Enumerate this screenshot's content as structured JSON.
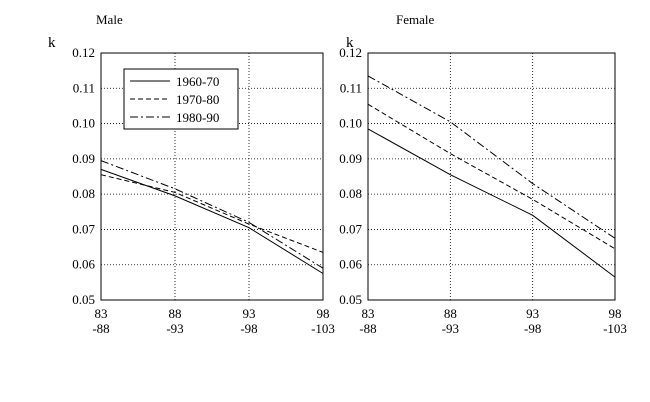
{
  "chart_data": [
    {
      "type": "line",
      "title": "Male",
      "ylabel": "k",
      "xlabel": "",
      "x": [
        "83 -88",
        "88 -93",
        "93 -98",
        "98 -103"
      ],
      "x_ticks": [
        {
          "line1": "83",
          "line2": "-88"
        },
        {
          "line1": "88",
          "line2": "-93"
        },
        {
          "line1": "93",
          "line2": "-98"
        },
        {
          "line1": "98",
          "line2": "-103"
        }
      ],
      "ylim": [
        0.05,
        0.12
      ],
      "yticks": [
        "0.05",
        "0.06",
        "0.07",
        "0.08",
        "0.09",
        "0.10",
        "0.11",
        "0.12"
      ],
      "grid": "dotted",
      "legend": "top-left",
      "series": [
        {
          "name": "1960-70",
          "style": "solid",
          "values": [
            0.087,
            0.0795,
            0.0705,
            0.0575
          ]
        },
        {
          "name": "1970-80",
          "style": "dashed",
          "values": [
            0.0855,
            0.0805,
            0.0715,
            0.0635
          ]
        },
        {
          "name": "1980-90",
          "style": "dashdot",
          "values": [
            0.0895,
            0.0815,
            0.072,
            0.059
          ]
        }
      ]
    },
    {
      "type": "line",
      "title": "Female",
      "ylabel": "k",
      "xlabel": "",
      "x": [
        "83 -88",
        "88 -93",
        "93 -98",
        "98 -103"
      ],
      "x_ticks": [
        {
          "line1": "83",
          "line2": "-88"
        },
        {
          "line1": "88",
          "line2": "-93"
        },
        {
          "line1": "93",
          "line2": "-98"
        },
        {
          "line1": "98",
          "line2": "-103"
        }
      ],
      "ylim": [
        0.05,
        0.12
      ],
      "yticks": [
        "0.05",
        "0.06",
        "0.07",
        "0.08",
        "0.09",
        "0.10",
        "0.11",
        "0.12"
      ],
      "grid": "dotted",
      "series": [
        {
          "name": "1960-70",
          "style": "solid",
          "values": [
            0.0985,
            0.0855,
            0.074,
            0.0565
          ]
        },
        {
          "name": "1970-80",
          "style": "dashed",
          "values": [
            0.1055,
            0.0915,
            0.0785,
            0.0645
          ]
        },
        {
          "name": "1980-90",
          "style": "dashdot",
          "values": [
            0.1135,
            0.1005,
            0.083,
            0.0675
          ]
        }
      ]
    }
  ]
}
